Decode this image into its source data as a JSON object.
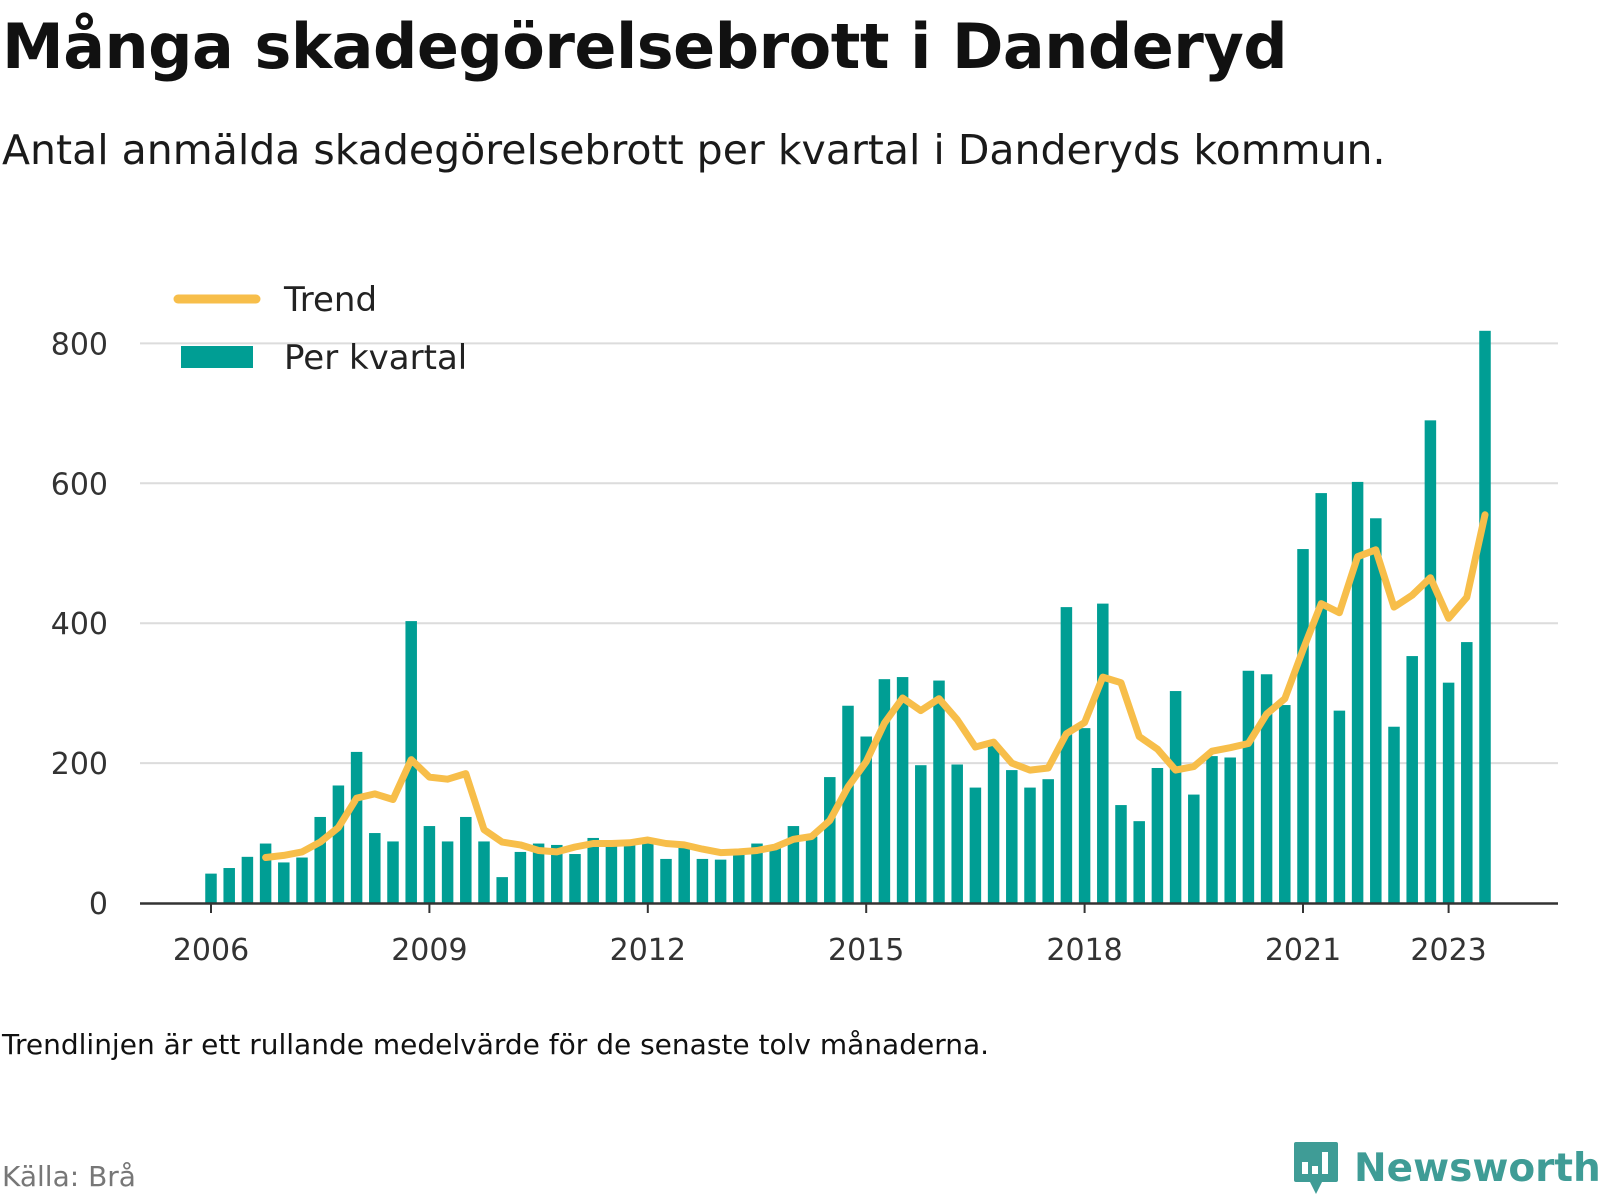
{
  "header": {
    "title": "Många skadegörelsebrott i Danderyd",
    "subtitle": "Antal anmälda skadegörelsebrott per kvartal i Danderyds kommun."
  },
  "footer": {
    "note": "Trendlinjen är ett rullande medelvärde för de senaste tolv månaderna.",
    "source": "Källa: Brå",
    "brand": "Newsworthy"
  },
  "colors": {
    "bars": "#009e94",
    "trend": "#f7be4a",
    "grid": "#dcdcdc",
    "axis": "#333333",
    "brand": "#3f9c96"
  },
  "chart_data": {
    "type": "bar",
    "title": "Många skadegörelsebrott i Danderyd",
    "xlabel": "",
    "ylabel": "",
    "ylim": [
      0,
      820
    ],
    "yticks": [
      0,
      200,
      400,
      600,
      800
    ],
    "xticks": [
      {
        "label": "2006",
        "quarter_index": 0
      },
      {
        "label": "2009",
        "quarter_index": 12
      },
      {
        "label": "2012",
        "quarter_index": 24
      },
      {
        "label": "2015",
        "quarter_index": 36
      },
      {
        "label": "2018",
        "quarter_index": 48
      },
      {
        "label": "2021",
        "quarter_index": 60
      },
      {
        "label": "2023",
        "quarter_index": 68
      }
    ],
    "grid": true,
    "legend_position": "top-left",
    "first_quarter": "2006 Q1",
    "series": [
      {
        "name": "Per kvartal",
        "type": "bar",
        "values": [
          42,
          50,
          66,
          85,
          58,
          65,
          123,
          168,
          216,
          100,
          88,
          403,
          110,
          88,
          123,
          88,
          37,
          73,
          85,
          83,
          70,
          93,
          88,
          85,
          88,
          63,
          80,
          63,
          62,
          75,
          85,
          78,
          110,
          95,
          180,
          282,
          238,
          320,
          323,
          197,
          318,
          198,
          165,
          225,
          190,
          165,
          177,
          423,
          250,
          428,
          140,
          117,
          193,
          303,
          155,
          210,
          208,
          332,
          327,
          283,
          506,
          586,
          275,
          602,
          550,
          252,
          353,
          690,
          315,
          373,
          818
        ]
      },
      {
        "name": "Trend",
        "type": "line",
        "start_quarter_index": 3,
        "values": [
          65,
          68,
          73,
          87,
          108,
          150,
          156,
          148,
          205,
          180,
          177,
          185,
          105,
          87,
          83,
          75,
          73,
          80,
          85,
          85,
          86,
          90,
          85,
          83,
          77,
          72,
          73,
          75,
          80,
          91,
          95,
          118,
          166,
          202,
          257,
          293,
          275,
          292,
          262,
          223,
          230,
          200,
          190,
          193,
          242,
          258,
          323,
          315,
          238,
          220,
          190,
          195,
          217,
          222,
          228,
          270,
          292,
          362,
          428,
          415,
          495,
          505,
          423,
          440,
          465,
          407,
          437,
          555
        ]
      }
    ]
  }
}
